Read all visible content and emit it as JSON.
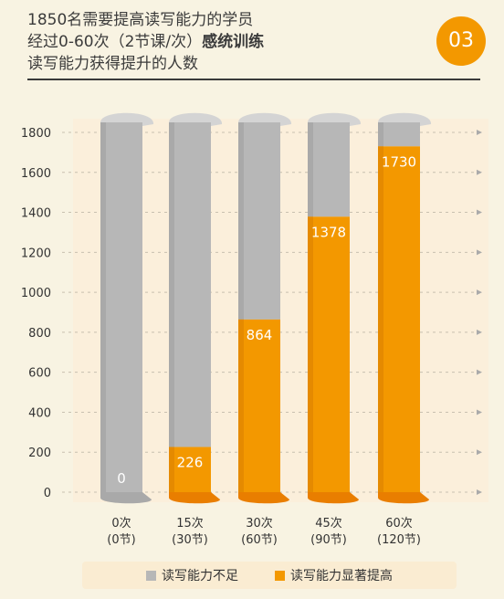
{
  "header": {
    "line1": "1850名需要提高读写能力的学员",
    "line2_prefix": "经过0-60次（2节课/次）",
    "line2_bold": "感统训练",
    "line3": "读写能力获得提升的人数",
    "badge": "03"
  },
  "colors": {
    "gray": "#b7b7b7",
    "orange": "#f39800",
    "badge": "#f39800"
  },
  "chart_data": {
    "type": "bar",
    "categories": [
      "0次\n(0节)",
      "15次\n(30节)",
      "30次\n(60节)",
      "45次\n(90节)",
      "60次\n(120节)"
    ],
    "total": 1850,
    "series": [
      {
        "name": "读写能力显著提高",
        "values": [
          0,
          226,
          864,
          1378,
          1730
        ]
      },
      {
        "name": "读写能力不足",
        "values": [
          1850,
          1624,
          986,
          472,
          120
        ]
      }
    ],
    "value_labels": [
      "0",
      "226",
      "864",
      "1378",
      "1730"
    ],
    "yticks": [
      0,
      200,
      400,
      600,
      800,
      1000,
      1200,
      1400,
      1600,
      1800
    ],
    "ylim": [
      0,
      1800
    ],
    "stacked": true,
    "legend_position": "bottom"
  },
  "legend": {
    "gray_label": "读写能力不足",
    "orange_label": "读写能力显著提高"
  }
}
